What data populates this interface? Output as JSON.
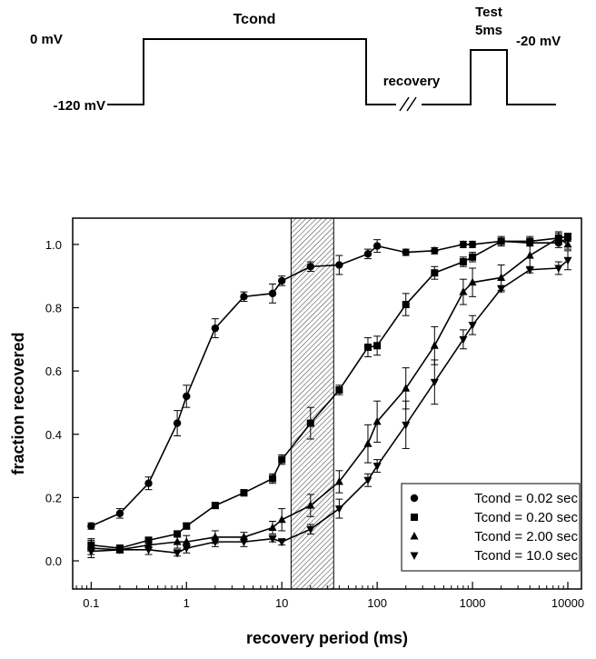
{
  "protocol": {
    "labels": {
      "hold": "-120 mV",
      "cond_voltage": "0 mV",
      "cond_name": "Tcond",
      "recovery": "recovery",
      "test_name": "Test",
      "test_duration": "5ms",
      "test_voltage": "-20 mV"
    }
  },
  "chart_data": {
    "type": "scatter",
    "title": "",
    "xlabel": "recovery period (ms)",
    "ylabel": "fraction recovered",
    "xscale": "log",
    "xlim": [
      0.064,
      13900
    ],
    "ylim": [
      -0.089,
      1.083
    ],
    "xticks": [
      0.1,
      1,
      10,
      100,
      1000,
      10000
    ],
    "xtick_labels": [
      "0.1",
      "1",
      "10",
      "100",
      "1000",
      "10000"
    ],
    "yticks": [
      0.0,
      0.2,
      0.4,
      0.6,
      0.8,
      1.0
    ],
    "ytick_labels": [
      "0.0",
      "0.2",
      "0.4",
      "0.6",
      "0.8",
      "1.0"
    ],
    "grid": false,
    "legend_position": "bottom-right",
    "shaded_region": {
      "x_from": 12.5,
      "x_to": 35,
      "pattern": "hatched"
    },
    "x": [
      0.1,
      0.2,
      0.4,
      0.8,
      1,
      2,
      4,
      8,
      10,
      20,
      40,
      80,
      100,
      200,
      400,
      800,
      1000,
      2000,
      4000,
      8000,
      10000
    ],
    "series": [
      {
        "name": "Tcond = 0.02 sec",
        "marker": "circle",
        "values": [
          0.11,
          0.15,
          0.245,
          0.435,
          0.52,
          0.735,
          0.835,
          0.845,
          0.885,
          0.93,
          0.935,
          0.97,
          0.995,
          0.975,
          0.98,
          1.0,
          1.0,
          1.01,
          1.005,
          1.005,
          1.02
        ],
        "errors": [
          0.01,
          0.015,
          0.02,
          0.04,
          0.035,
          0.03,
          0.015,
          0.03,
          0.015,
          0.015,
          0.03,
          0.015,
          0.02,
          0.01,
          0.01,
          0.01,
          0.01,
          0.01,
          0.01,
          0.015,
          0.01
        ]
      },
      {
        "name": "Tcond = 0.20 sec",
        "marker": "square",
        "values": [
          0.05,
          0.04,
          0.065,
          0.085,
          0.11,
          0.175,
          0.215,
          0.26,
          0.32,
          0.435,
          0.54,
          0.675,
          0.68,
          0.81,
          0.91,
          0.945,
          0.96,
          1.01,
          1.01,
          1.02,
          1.025
        ],
        "errors": [
          0.015,
          0.01,
          0.01,
          0.01,
          0.01,
          0.01,
          0.01,
          0.015,
          0.015,
          0.05,
          0.015,
          0.03,
          0.03,
          0.035,
          0.02,
          0.015,
          0.015,
          0.015,
          0.015,
          0.02,
          0.01
        ]
      },
      {
        "name": "Tcond = 2.00 sec",
        "marker": "triangle-up",
        "values": [
          0.04,
          0.035,
          0.05,
          0.06,
          0.06,
          0.075,
          0.075,
          0.105,
          0.13,
          0.175,
          0.25,
          0.37,
          0.44,
          0.545,
          0.68,
          0.85,
          0.88,
          0.895,
          0.965,
          1.02,
          1.0
        ],
        "errors": [
          0.03,
          0.01,
          0.015,
          0.02,
          0.02,
          0.02,
          0.015,
          0.02,
          0.035,
          0.035,
          0.035,
          0.06,
          0.065,
          0.065,
          0.06,
          0.04,
          0.045,
          0.04,
          0.04,
          0.015,
          0.015
        ]
      },
      {
        "name": "Tcond = 10.0 sec",
        "marker": "triangle-down",
        "values": [
          0.03,
          0.035,
          0.035,
          0.025,
          0.04,
          0.06,
          0.06,
          0.07,
          0.06,
          0.1,
          0.165,
          0.255,
          0.3,
          0.43,
          0.565,
          0.7,
          0.745,
          0.86,
          0.92,
          0.925,
          0.95
        ],
        "errors": [
          0.01,
          0.01,
          0.015,
          0.01,
          0.015,
          0.015,
          0.015,
          0.01,
          0.01,
          0.015,
          0.03,
          0.02,
          0.02,
          0.075,
          0.07,
          0.03,
          0.03,
          0.01,
          0.01,
          0.02,
          0.03
        ]
      }
    ]
  }
}
